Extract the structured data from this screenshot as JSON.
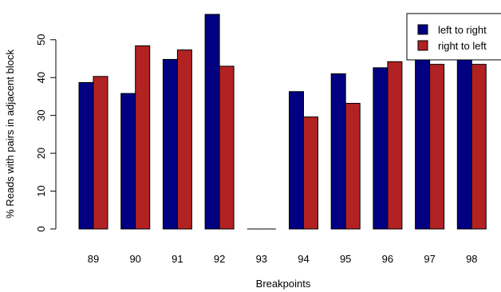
{
  "chart_data": {
    "type": "bar",
    "xlabel": "Breakpoints",
    "ylabel": "% Reads with pairs in adjacent block",
    "categories": [
      "89",
      "90",
      "91",
      "92",
      "93",
      "94",
      "95",
      "96",
      "97",
      "98"
    ],
    "series": [
      {
        "name": "left to right",
        "color": "#000080",
        "values": [
          38.7,
          35.8,
          44.8,
          56.7,
          0.0,
          36.3,
          41.0,
          42.6,
          48.2,
          47.2
        ]
      },
      {
        "name": "right to left",
        "color": "#b22222",
        "values": [
          40.3,
          48.4,
          47.3,
          43.0,
          0.0,
          29.6,
          33.2,
          44.2,
          43.5,
          43.5
        ]
      }
    ],
    "yticks": [
      0,
      10,
      20,
      30,
      40,
      50
    ],
    "ylim": [
      0,
      56.7
    ],
    "grid": false,
    "legend_position": "top-right"
  }
}
